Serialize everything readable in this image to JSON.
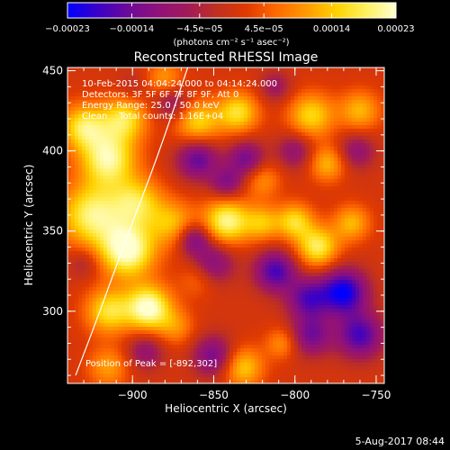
{
  "chart_data": {
    "type": "heatmap",
    "title": "Reconstructed RHESSI Image",
    "xlabel": "Heliocentric X (arcsec)",
    "ylabel": "Heliocentric Y (arcsec)",
    "xlim": [
      -940,
      -745
    ],
    "ylim": [
      255,
      452
    ],
    "x_ticks": [
      {
        "value": -900,
        "label": "−900"
      },
      {
        "value": -850,
        "label": "−850"
      },
      {
        "value": -800,
        "label": "−800"
      },
      {
        "value": -750,
        "label": "−750"
      }
    ],
    "y_ticks": [
      {
        "value": 300,
        "label": "300"
      },
      {
        "value": 350,
        "label": "350"
      },
      {
        "value": 400,
        "label": "400"
      },
      {
        "value": 450,
        "label": "450"
      }
    ],
    "info_lines": [
      "10-Feb-2015 04:04:24.000 to 04:14:24.000",
      "Detectors: 3F 5F 6F 7F 8F 9F, Att 0",
      "Energy Range: 25.0 - 50.0 keV",
      "Clean    Total counts: 1.16E+04"
    ],
    "peak_label": "Position of Peak = [-892,302]",
    "peak": {
      "x": -892,
      "y": 302
    },
    "limb_curve": [
      [
        -935,
        260
      ],
      [
        -920,
        300
      ],
      [
        -904,
        345
      ],
      [
        -885,
        395
      ],
      [
        -866,
        452
      ]
    ],
    "colorbar": {
      "min": -0.00023,
      "max": 0.00023,
      "ticks": [
        {
          "value": -0.00023,
          "label": "−0.00023"
        },
        {
          "value": -0.00014,
          "label": "−0.00014"
        },
        {
          "value": -4.5e-05,
          "label": "−4.5e−05"
        },
        {
          "value": 4.5e-05,
          "label": "4.5e−05"
        },
        {
          "value": 0.00014,
          "label": "0.00014"
        },
        {
          "value": 0.00023,
          "label": "0.00023"
        }
      ],
      "unit_label": "(photons cm⁻² s⁻¹ asec⁻²)",
      "colors": [
        "#0000ff",
        "#3a00c8",
        "#6a0a9a",
        "#90117a",
        "#a01a5a",
        "#c03020",
        "#e03a00",
        "#ff6a00",
        "#ff9a00",
        "#ffd200",
        "#fff060",
        "#ffffd0"
      ]
    },
    "blobs": [
      {
        "x": -903,
        "y": 338,
        "v": 0.00023,
        "r": 12
      },
      {
        "x": -925,
        "y": 360,
        "v": 0.00019,
        "r": 14
      },
      {
        "x": -915,
        "y": 395,
        "v": 0.0002,
        "r": 12
      },
      {
        "x": -930,
        "y": 415,
        "v": 0.00017,
        "r": 10
      },
      {
        "x": -905,
        "y": 420,
        "v": 0.00016,
        "r": 10
      },
      {
        "x": -890,
        "y": 302,
        "v": 0.00023,
        "r": 10
      },
      {
        "x": -915,
        "y": 300,
        "v": 0.00016,
        "r": 10
      },
      {
        "x": -897,
        "y": 368,
        "v": 0.00015,
        "r": 11
      },
      {
        "x": -875,
        "y": 355,
        "v": 0.00012,
        "r": 10
      },
      {
        "x": -842,
        "y": 356,
        "v": 0.0002,
        "r": 10
      },
      {
        "x": -820,
        "y": 355,
        "v": 0.00012,
        "r": 8
      },
      {
        "x": -800,
        "y": 356,
        "v": 0.00015,
        "r": 8
      },
      {
        "x": -786,
        "y": 340,
        "v": 0.00018,
        "r": 9
      },
      {
        "x": -765,
        "y": 355,
        "v": 0.00012,
        "r": 8
      },
      {
        "x": -860,
        "y": 418,
        "v": 0.00015,
        "r": 10
      },
      {
        "x": -835,
        "y": 424,
        "v": 0.00016,
        "r": 9
      },
      {
        "x": -790,
        "y": 422,
        "v": 0.00015,
        "r": 10
      },
      {
        "x": -760,
        "y": 425,
        "v": 0.00012,
        "r": 9
      },
      {
        "x": -780,
        "y": 392,
        "v": 0.00012,
        "r": 8
      },
      {
        "x": -820,
        "y": 382,
        "v": 9e-05,
        "r": 8
      },
      {
        "x": -832,
        "y": 265,
        "v": 0.00014,
        "r": 9
      },
      {
        "x": -808,
        "y": 280,
        "v": 9e-05,
        "r": 7
      },
      {
        "x": -873,
        "y": 290,
        "v": 8e-05,
        "r": 8
      },
      {
        "x": -860,
        "y": 320,
        "v": 6e-05,
        "r": 8
      },
      {
        "x": -915,
        "y": 265,
        "v": 0.0001,
        "r": 9
      },
      {
        "x": -880,
        "y": 445,
        "v": 0.0001,
        "r": 8
      },
      {
        "x": -860,
        "y": 395,
        "v": -0.00016,
        "r": 9
      },
      {
        "x": -830,
        "y": 395,
        "v": -0.00014,
        "r": 8
      },
      {
        "x": -842,
        "y": 380,
        "v": -0.00012,
        "r": 7
      },
      {
        "x": -800,
        "y": 400,
        "v": -0.0001,
        "r": 8
      },
      {
        "x": -850,
        "y": 330,
        "v": -0.00012,
        "r": 9
      },
      {
        "x": -812,
        "y": 325,
        "v": -0.00018,
        "r": 9
      },
      {
        "x": -792,
        "y": 308,
        "v": -0.00016,
        "r": 9
      },
      {
        "x": -770,
        "y": 312,
        "v": -0.00023,
        "r": 10
      },
      {
        "x": -760,
        "y": 285,
        "v": -0.00018,
        "r": 10
      },
      {
        "x": -790,
        "y": 285,
        "v": -0.00014,
        "r": 9
      },
      {
        "x": -850,
        "y": 272,
        "v": -0.00014,
        "r": 9
      },
      {
        "x": -892,
        "y": 275,
        "v": -0.0001,
        "r": 8
      },
      {
        "x": -862,
        "y": 345,
        "v": -0.00014,
        "r": 7
      },
      {
        "x": -875,
        "y": 430,
        "v": -0.0001,
        "r": 8
      },
      {
        "x": -812,
        "y": 440,
        "v": -8e-05,
        "r": 7
      },
      {
        "x": -762,
        "y": 400,
        "v": -0.0001,
        "r": 8
      },
      {
        "x": -900,
        "y": 440,
        "v": -4e-05,
        "r": 7
      },
      {
        "x": -930,
        "y": 330,
        "v": -6e-05,
        "r": 7
      }
    ]
  },
  "timestamp": "5-Aug-2017 08:44"
}
